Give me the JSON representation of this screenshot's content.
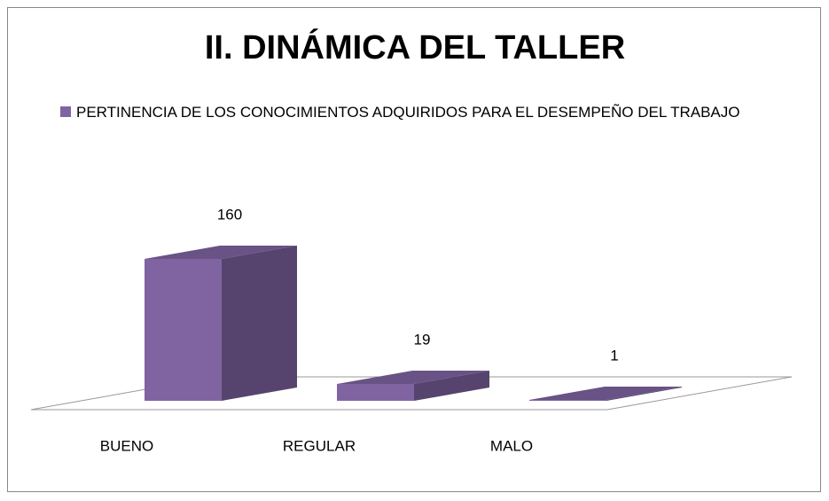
{
  "chart_data": {
    "type": "bar3d",
    "title": "II. DINÁMICA  DEL TALLER",
    "categories": [
      "BUENO",
      "REGULAR",
      "MALO"
    ],
    "series": [
      {
        "name": "PERTINENCIA  DE LOS CONOCIMIENTOS  ADQUIRIDOS PARA EL DESEMPEÑO DEL TRABAJO",
        "color": "#8064a2",
        "values": [
          160,
          19,
          1
        ]
      }
    ]
  }
}
